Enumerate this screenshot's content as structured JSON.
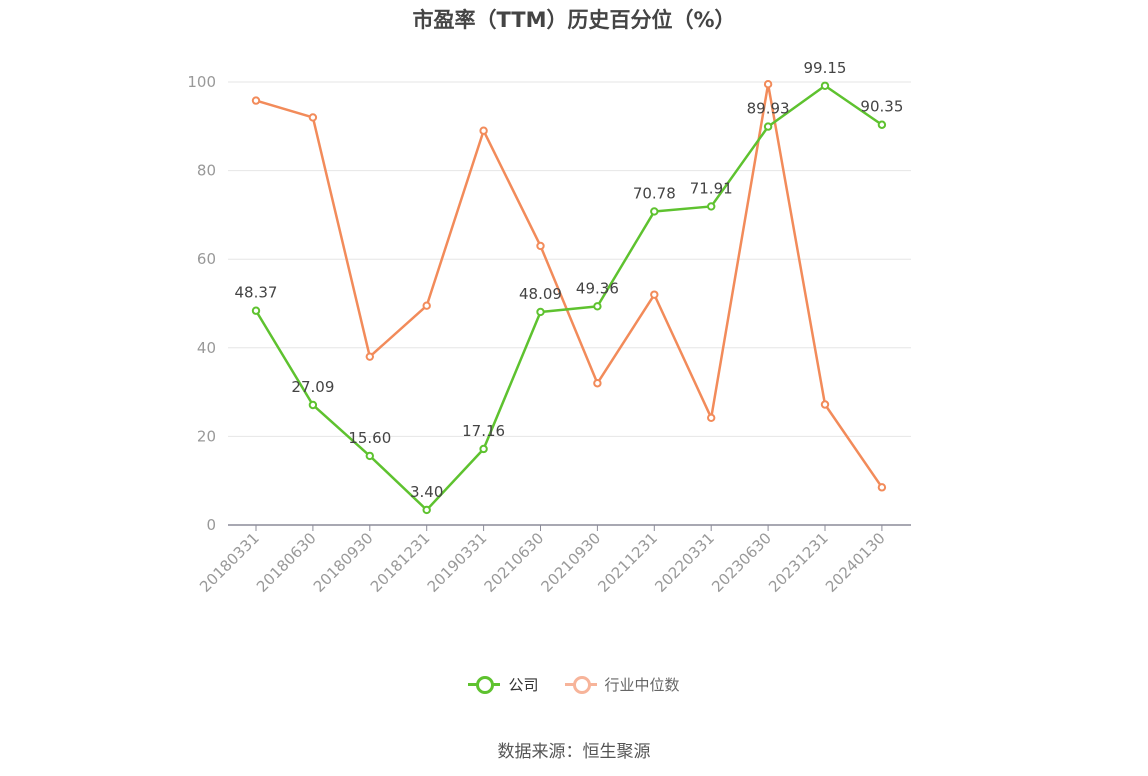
{
  "chart_data": {
    "type": "line",
    "title": "市盈率（TTM）历史百分位（%）",
    "ylim": [
      0,
      100
    ],
    "yticks": [
      0,
      20,
      40,
      60,
      80,
      100
    ],
    "grid": true,
    "legend_position": "bottom",
    "categories": [
      "20180331",
      "20180630",
      "20180930",
      "20181231",
      "20190331",
      "20210630",
      "20210930",
      "20211231",
      "20220331",
      "20230630",
      "20231231",
      "20240130"
    ],
    "series": [
      {
        "name": "公司",
        "color": "#5ec22f",
        "values": [
          48.37,
          27.09,
          15.6,
          3.4,
          17.16,
          48.09,
          49.36,
          70.78,
          71.91,
          89.93,
          99.15,
          90.35
        ],
        "labels": [
          "48.37",
          "27.09",
          "15.60",
          "3.40",
          "17.16",
          "48.09",
          "49.36",
          "70.78",
          "71.91",
          "89.93",
          "99.15",
          "90.35"
        ]
      },
      {
        "name": "行业中位数",
        "color": "#f28b5a",
        "legend_color": "#f7b49a",
        "values": [
          95.8,
          92.0,
          38.0,
          49.5,
          89.0,
          63.0,
          32.0,
          52.0,
          24.2,
          99.5,
          27.2,
          8.5
        ]
      }
    ]
  },
  "source_text": "数据来源：恒生聚源"
}
